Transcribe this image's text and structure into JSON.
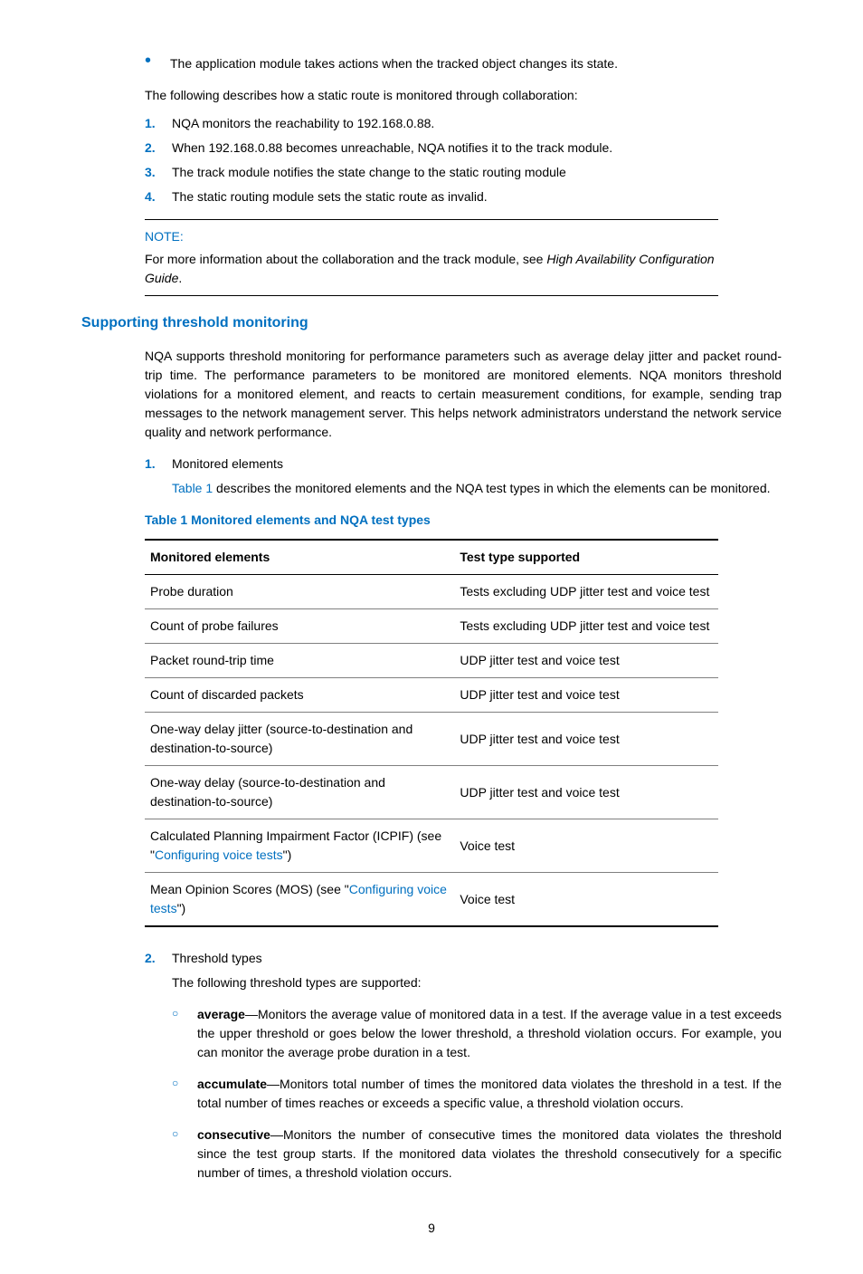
{
  "top_bullet": "The application module takes actions when the tracked object changes its state.",
  "intro": "The following describes how a static route is monitored through collaboration:",
  "steps": [
    "NQA monitors the reachability to 192.168.0.88.",
    "When 192.168.0.88 becomes unreachable, NQA notifies it to the track module.",
    "The track module notifies the state change to the static routing module",
    "The static routing module sets the static route as invalid."
  ],
  "note": {
    "label": "NOTE:",
    "prefix": "For more information about the collaboration and the track module, see ",
    "italic": "High Availability Configuration Guide",
    "suffix": "."
  },
  "heading": "Supporting threshold monitoring",
  "para1": "NQA supports threshold monitoring for performance parameters such as average delay jitter and packet round-trip time. The performance parameters to be monitored are monitored elements. NQA monitors threshold violations for a monitored element, and reacts to certain measurement conditions, for example, sending trap messages to the network management server. This helps network administrators understand the network service quality and network performance.",
  "item1": {
    "title": "Monitored elements",
    "sub_prefix": "",
    "sub_link": "Table 1",
    "sub_suffix": " describes the monitored elements and the NQA test types in which the elements can be monitored."
  },
  "table": {
    "title": "Table 1 Monitored elements and NQA test types",
    "header": {
      "c1": "Monitored elements",
      "c2": "Test type supported"
    },
    "rows": [
      {
        "c1": "Probe duration",
        "c2": "Tests excluding UDP jitter test and voice test"
      },
      {
        "c1": "Count of probe failures",
        "c2": "Tests excluding UDP jitter test and voice test"
      },
      {
        "c1": "Packet round-trip time",
        "c2": "UDP jitter test and voice test"
      },
      {
        "c1": "Count of discarded packets",
        "c2": "UDP jitter test and voice test"
      },
      {
        "c1": "One-way delay jitter (source-to-destination and destination-to-source)",
        "c2": "UDP jitter test and voice test"
      },
      {
        "c1": "One-way delay (source-to-destination and destination-to-source)",
        "c2": "UDP jitter test and voice test"
      },
      {
        "c1_pre": "Calculated Planning Impairment Factor (ICPIF) (see \"",
        "c1_link": "Configuring voice tests",
        "c1_post": "\")",
        "c2": "Voice test"
      },
      {
        "c1_pre": "Mean Opinion Scores (MOS) (see \"",
        "c1_link": "Configuring voice tests",
        "c1_post": "\")",
        "c2": "Voice test"
      }
    ]
  },
  "item2": {
    "title": "Threshold types",
    "sub": "The following threshold types are supported:",
    "bullets": [
      {
        "bold": "average",
        "text": "—Monitors the average value of monitored data in a test. If the average value in a test exceeds the upper threshold or goes below the lower threshold, a threshold violation occurs. For example, you can monitor the average probe duration in a test."
      },
      {
        "bold": "accumulate",
        "text": "—Monitors total number of times the monitored data violates the threshold in a test. If the total number of times reaches or exceeds a specific value, a threshold violation occurs."
      },
      {
        "bold": "consecutive",
        "text": "—Monitors the number of consecutive times the monitored data violates the threshold since the test group starts. If the monitored data violates the threshold consecutively for a specific number of times, a threshold violation occurs."
      }
    ]
  },
  "page_num": "9",
  "markers": {
    "n1": "1.",
    "n2": "2.",
    "n3": "3.",
    "n4": "4.",
    "circ": "○",
    "dot": "•"
  }
}
